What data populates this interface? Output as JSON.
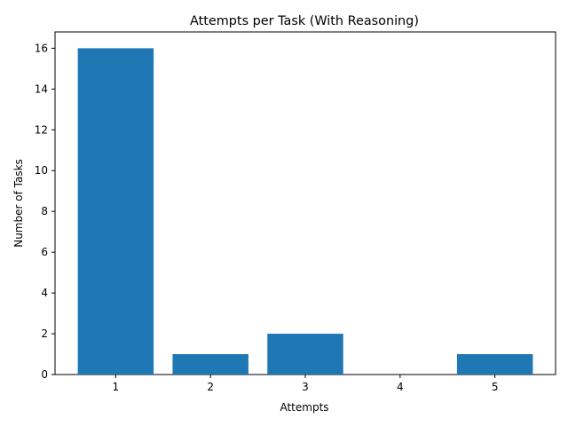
{
  "chart_data": {
    "type": "bar",
    "title": "Attempts per Task (With Reasoning)",
    "xlabel": "Attempts",
    "ylabel": "Number of Tasks",
    "categories": [
      "1",
      "2",
      "3",
      "4",
      "5"
    ],
    "values": [
      16,
      1,
      2,
      0,
      1
    ],
    "ylim": [
      0,
      16.8
    ],
    "yticks": [
      0,
      2,
      4,
      6,
      8,
      10,
      12,
      14,
      16
    ],
    "grid": false,
    "bar_color": "#1f77b4"
  }
}
